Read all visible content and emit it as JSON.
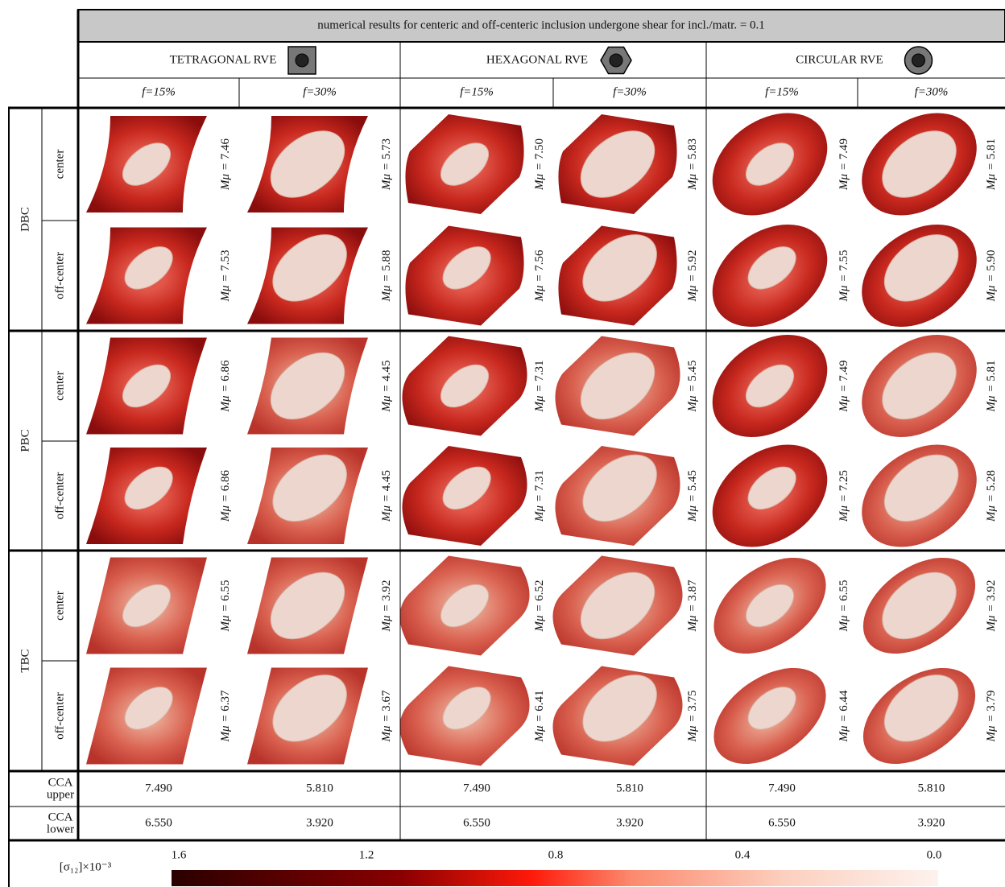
{
  "title": "numerical results for centeric and off-centeric inclusion undergone shear for incl./matr. = 0.1",
  "column_groups": [
    {
      "label": "TETRAGONAL RVE",
      "subcolumns": [
        "f=15%",
        "f=30%"
      ]
    },
    {
      "label": "HEXAGONAL RVE",
      "subcolumns": [
        "f=15%",
        "f=30%"
      ]
    },
    {
      "label": "CIRCULAR RVE",
      "subcolumns": [
        "f=15%",
        "f=30%"
      ]
    }
  ],
  "value_prefix": "Mμ = ",
  "row_groups": [
    {
      "label": "DBC",
      "rows": [
        {
          "label": "center",
          "values": [
            "7.46",
            "5.73",
            "7.50",
            "5.83",
            "7.49",
            "5.81"
          ]
        },
        {
          "label": "off-center",
          "values": [
            "7.53",
            "5.88",
            "7.56",
            "5.92",
            "7.55",
            "5.90"
          ]
        }
      ]
    },
    {
      "label": "PBC",
      "rows": [
        {
          "label": "center",
          "values": [
            "6.86",
            "4.45",
            "7.31",
            "5.45",
            "7.49",
            "5.81"
          ]
        },
        {
          "label": "off-center",
          "values": [
            "6.86",
            "4.45",
            "7.31",
            "5.45",
            "7.25",
            "5.28"
          ]
        }
      ]
    },
    {
      "label": "TBC",
      "rows": [
        {
          "label": "center",
          "values": [
            "6.55",
            "3.92",
            "6.52",
            "3.87",
            "6.55",
            "3.92"
          ]
        },
        {
          "label": "off-center",
          "values": [
            "6.37",
            "3.67",
            "6.41",
            "3.75",
            "6.44",
            "3.79"
          ]
        }
      ]
    }
  ],
  "bounds": [
    {
      "label": "CCA",
      "sublabel": "upper",
      "values": [
        "7.490",
        "5.810",
        "7.490",
        "5.810",
        "7.490",
        "5.810"
      ]
    },
    {
      "label": "CCA",
      "sublabel": "lower",
      "values": [
        "6.550",
        "3.920",
        "6.550",
        "3.920",
        "6.550",
        "3.920"
      ]
    }
  ],
  "colorbar": {
    "label": "[σ₁₂]×10⁻³",
    "ticks": [
      "1.6",
      "1.2",
      "0.8",
      "0.4",
      "0.0"
    ]
  }
}
